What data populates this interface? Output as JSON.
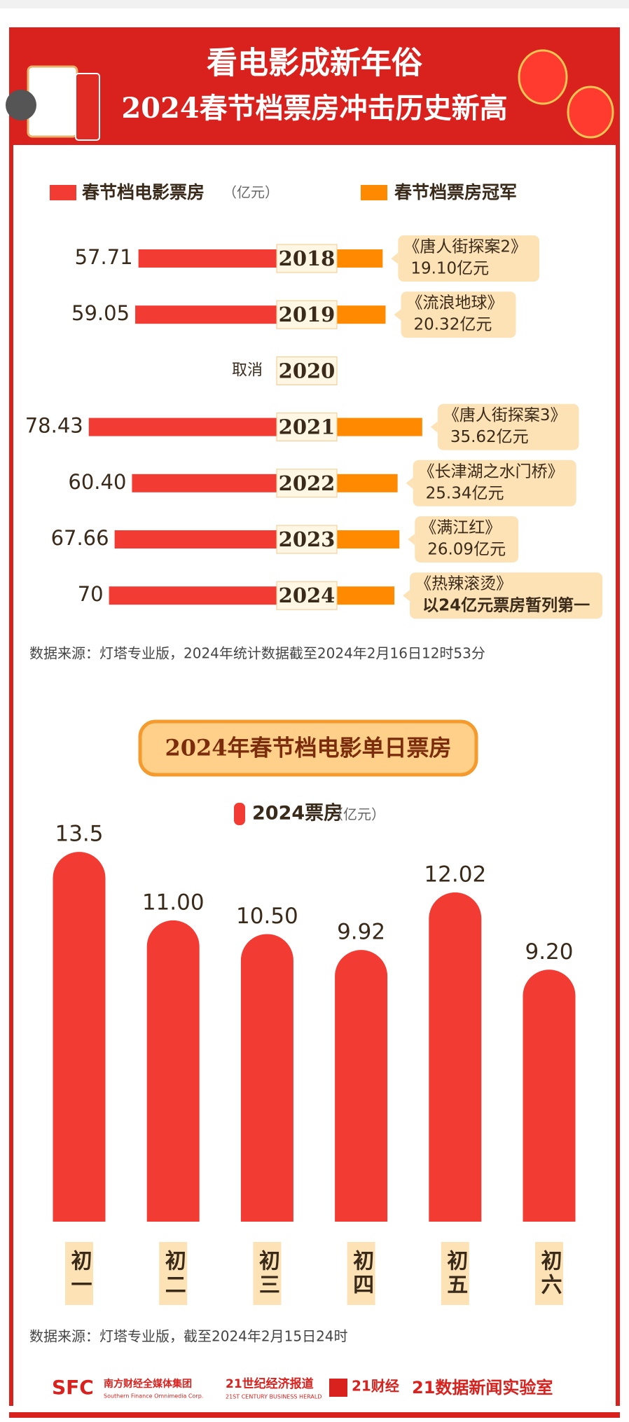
{
  "header": {
    "title_line1": "看电影成新年俗",
    "title_line2": "2024春节档票房冲击历史新高"
  },
  "chart_data": [
    {
      "type": "butterfly",
      "categories": [
        "2018",
        "2019",
        "2020",
        "2021",
        "2022",
        "2023",
        "2024"
      ],
      "series": [
        {
          "name": "春节档电影票房",
          "unit": "（亿元）",
          "color": "#f23b33",
          "values": [
            57.71,
            59.05,
            null,
            78.43,
            60.4,
            67.66,
            70
          ],
          "value_labels": [
            "57.71",
            "59.05",
            "取消",
            "78.43",
            "60.40",
            "67.66",
            "70"
          ]
        },
        {
          "name": "春节档票房冠军",
          "color": "#ff8a00",
          "values": [
            19.1,
            20.32,
            null,
            35.62,
            25.34,
            26.09,
            24
          ],
          "films": [
            "《唐人街探案2》",
            "《流浪地球》",
            null,
            "《唐人街探案3》",
            "《长津湖之水门桥》",
            "《满江红》",
            "《热辣滚烫》"
          ],
          "value_labels": [
            "19.10亿元",
            "20.32亿元",
            null,
            "35.62亿元",
            "25.34亿元",
            "26.09亿元",
            "以24亿元票房暂列第一"
          ]
        }
      ],
      "source": "数据来源：灯塔专业版，2024年统计数据截至2024年2月16日12时53分"
    },
    {
      "type": "bar",
      "title": "2024年春节档电影单日票房",
      "series_name": "2024票房",
      "unit": "（亿元）",
      "color": "#f23b33",
      "categories": [
        "初一",
        "初二",
        "初三",
        "初四",
        "初五",
        "初六"
      ],
      "values": [
        13.5,
        11.0,
        10.5,
        9.92,
        12.02,
        9.2
      ],
      "value_labels": [
        "13.5",
        "11.00",
        "10.50",
        "9.92",
        "12.02",
        "9.20"
      ],
      "source": "数据来源：灯塔专业版，截至2024年2月15日24时"
    }
  ],
  "footer": {
    "logo1_mark": "SFC",
    "logo1": "南方财经全媒体集团",
    "logo1_en": "Southern Finance Omnimedia Corp.",
    "logo2": "21世纪经济报道",
    "logo2_en": "21ST CENTURY BUSINESS HERALD",
    "logo3": "21财经",
    "logo4": "21数据新闻实验室"
  }
}
